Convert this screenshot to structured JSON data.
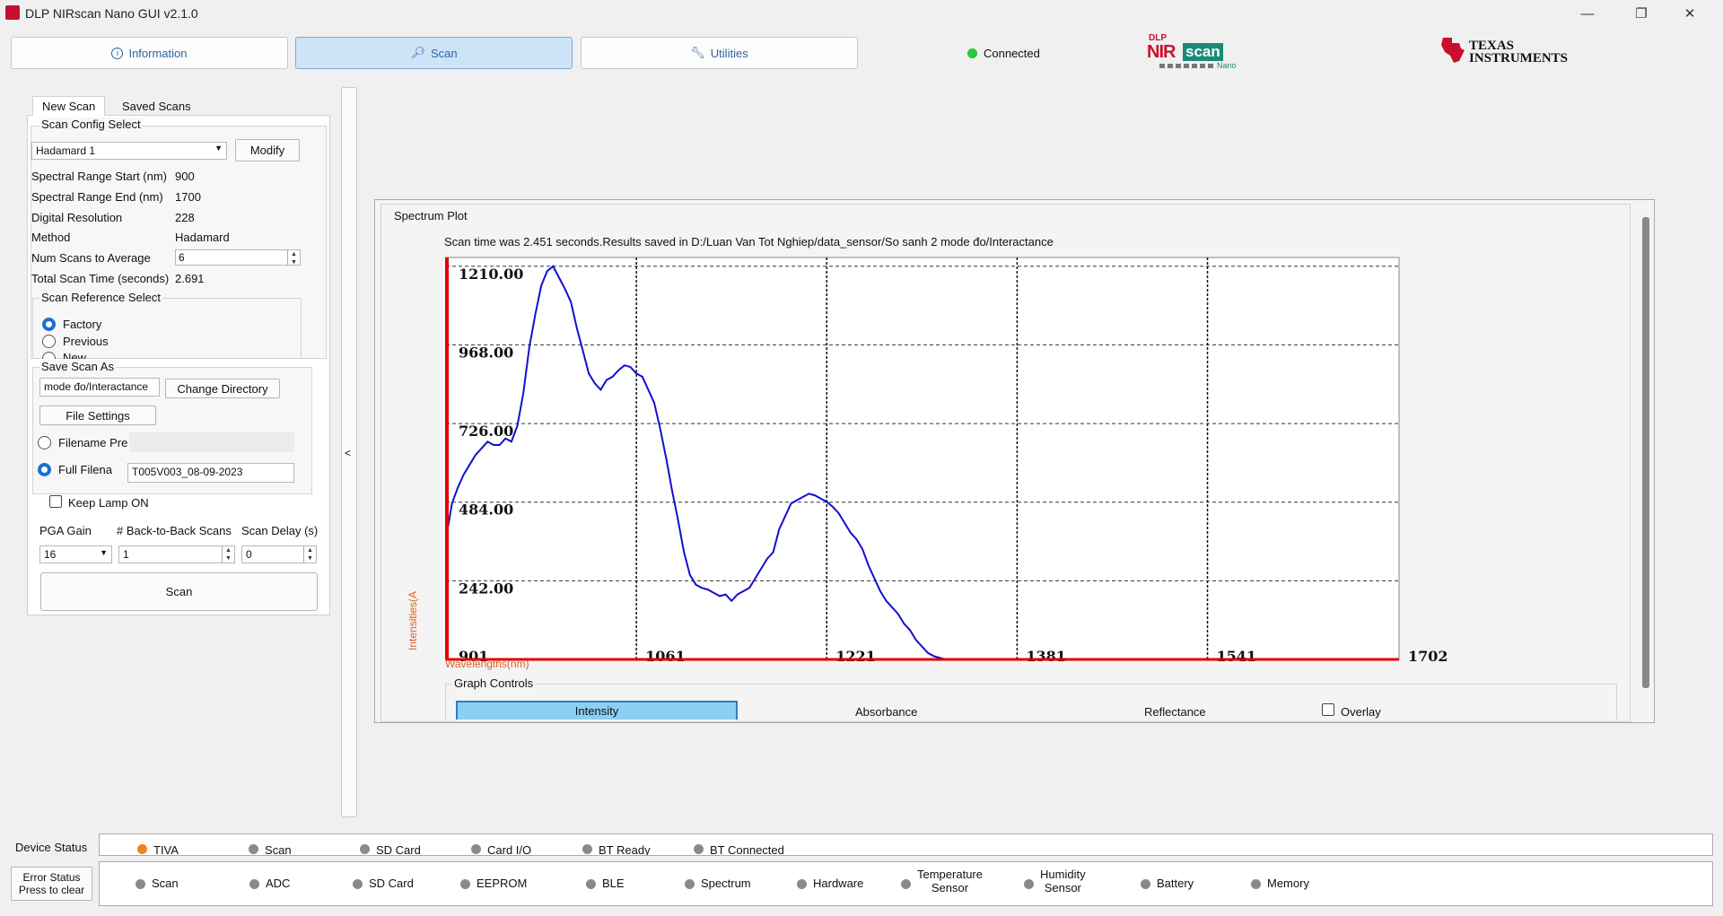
{
  "window": {
    "title": "DLP NIRscan Nano GUI v2.1.0",
    "minimize": "—",
    "restore": "❐",
    "close": "✕"
  },
  "nav": {
    "information": "Information",
    "scan": "Scan",
    "utilities": "Utilities",
    "connection_status": "Connected",
    "connection_color": "#28c840"
  },
  "logos": {
    "nirscan_dlp": "DLP",
    "nirscan_nir": "NIR",
    "nirscan_scan": "scan",
    "nirscan_nano": "Nano",
    "ti_line1": "Texas",
    "ti_line2": "Instruments"
  },
  "tabs": {
    "new_scan": "New Scan",
    "saved_scans": "Saved Scans"
  },
  "scan_config": {
    "group_title": "Scan Config Select",
    "selected": "Hadamard 1",
    "modify": "Modify",
    "rows": [
      {
        "label": "Spectral Range Start (nm)",
        "value": "900"
      },
      {
        "label": "Spectral Range End (nm)",
        "value": "1700"
      },
      {
        "label": "Digital Resolution",
        "value": "228"
      },
      {
        "label": "Method",
        "value": "Hadamard"
      }
    ],
    "num_scans_label": "Num Scans to Average",
    "num_scans_value": "6",
    "total_time_label": "Total Scan Time (seconds)",
    "total_time_value": "2.691"
  },
  "scan_reference": {
    "group_title": "Scan Reference Select",
    "factory": "Factory",
    "previous": "Previous",
    "new": "New"
  },
  "save_scan": {
    "group_title": "Save Scan As",
    "directory_value": "mode đo/Interactance",
    "change_directory": "Change Directory",
    "file_settings": "File Settings",
    "filename_prefix": "Filename Pre",
    "full_filename": "Full Filena",
    "full_filename_value": "T005V003_08-09-2023"
  },
  "keep_lamp": "Keep Lamp ON",
  "pga": {
    "label": "PGA Gain",
    "value": "16"
  },
  "back_to_back": {
    "label": "# Back-to-Back Scans",
    "value": "1"
  },
  "scan_delay": {
    "label": "Scan Delay (s)",
    "value": "0"
  },
  "scan_button": "Scan",
  "collapse_arrow": "<",
  "spectrum": {
    "group_title": "Spectrum Plot",
    "message": "Scan time was 2.451 seconds.Results saved in D:/Luan Van Tot Nghiep/data_sensor/So sanh 2 mode đo/Interactance",
    "graph_controls": "Graph Controls",
    "intensity": "Intensity",
    "absorbance": "Absorbance",
    "reflectance": "Reflectance",
    "overlay": "Overlay"
  },
  "chart_data": {
    "type": "line",
    "xlabel": "Wavelengths(nm)",
    "ylabel": "Intensities(A",
    "xlim": [
      901,
      1702
    ],
    "ylim": [
      0,
      1237
    ],
    "x_ticks": [
      "901",
      "1061",
      "1221",
      "1381",
      "1541",
      "1702"
    ],
    "y_ticks": [
      "242.00",
      "484.00",
      "726.00",
      "968.00",
      "1210.00"
    ],
    "series": [
      {
        "color": "#1010d0",
        "x": [
          901,
          906,
          911,
          916,
          921,
          926,
          931,
          936,
          941,
          946,
          951,
          956,
          961,
          966,
          971,
          976,
          981,
          986,
          991,
          996,
          1001,
          1006,
          1011,
          1016,
          1021,
          1026,
          1031,
          1036,
          1041,
          1046,
          1051,
          1056,
          1061,
          1066,
          1071,
          1076,
          1081,
          1086,
          1091,
          1096,
          1101,
          1106,
          1111,
          1116,
          1121,
          1126,
          1131,
          1136,
          1141,
          1146,
          1151,
          1156,
          1161,
          1166,
          1171,
          1176,
          1181,
          1186,
          1191,
          1196,
          1201,
          1206,
          1211,
          1216,
          1221,
          1226,
          1231,
          1236,
          1241,
          1246,
          1251,
          1256,
          1261,
          1266,
          1271,
          1276,
          1281,
          1286,
          1291,
          1296,
          1301,
          1306,
          1311,
          1316,
          1321,
          1326,
          1331,
          1336,
          1341,
          1346,
          1351,
          1356,
          1361,
          1366,
          1371,
          1376,
          1381,
          1386
        ],
        "y": [
          370,
          480,
          530,
          570,
          600,
          630,
          650,
          670,
          660,
          660,
          680,
          670,
          720,
          820,
          960,
          1060,
          1150,
          1195,
          1210,
          1175,
          1140,
          1100,
          1020,
          950,
          880,
          850,
          830,
          860,
          870,
          890,
          905,
          900,
          880,
          870,
          830,
          790,
          710,
          620,
          520,
          430,
          330,
          260,
          230,
          220,
          215,
          205,
          195,
          200,
          180,
          200,
          210,
          220,
          250,
          280,
          310,
          330,
          400,
          440,
          480,
          490,
          500,
          510,
          505,
          495,
          485,
          470,
          450,
          420,
          390,
          370,
          340,
          290,
          250,
          210,
          180,
          160,
          140,
          110,
          90,
          60,
          40,
          20,
          10,
          5,
          0,
          0,
          0,
          0,
          0,
          0,
          0,
          0,
          0,
          0,
          0,
          0,
          0,
          0
        ]
      }
    ]
  },
  "device_status": {
    "label": "Device Status",
    "items": [
      {
        "name": "TIVA",
        "color": "#f08020"
      },
      {
        "name": "Scan",
        "color": "#8a8a8a"
      },
      {
        "name": "SD Card",
        "color": "#8a8a8a"
      },
      {
        "name": "Card I/O",
        "color": "#8a8a8a"
      },
      {
        "name": "BT Ready",
        "color": "#8a8a8a"
      },
      {
        "name": "BT Connected",
        "color": "#8a8a8a"
      }
    ]
  },
  "error_status": {
    "label_line1": "Error Status",
    "label_line2": "Press to clear",
    "items": [
      {
        "name": "Scan"
      },
      {
        "name": "ADC"
      },
      {
        "name": "SD Card"
      },
      {
        "name": "EEPROM"
      },
      {
        "name": "BLE"
      },
      {
        "name": "Spectrum"
      },
      {
        "name": "Hardware"
      },
      {
        "name": "Temperature",
        "name2": "Sensor"
      },
      {
        "name": "Humidity",
        "name2": "Sensor"
      },
      {
        "name": "Battery"
      },
      {
        "name": "Memory"
      }
    ]
  }
}
